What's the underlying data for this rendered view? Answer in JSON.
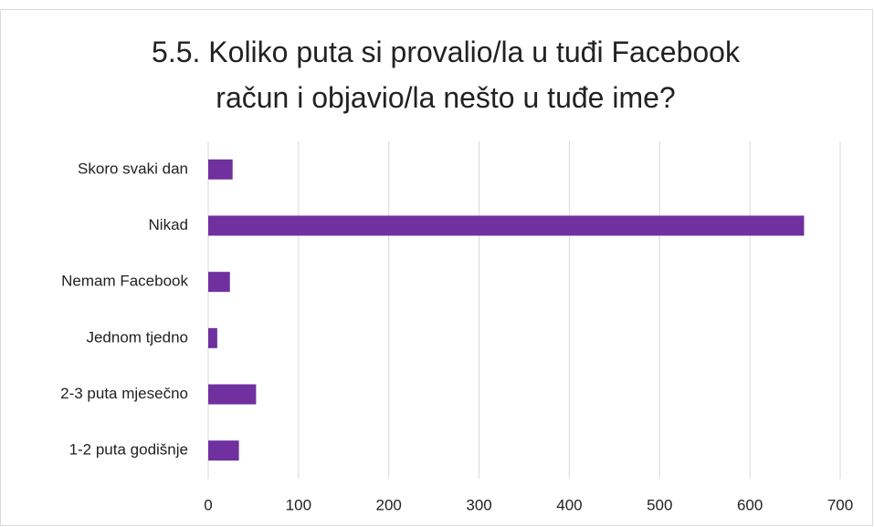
{
  "chart_data": {
    "type": "bar",
    "orientation": "horizontal",
    "title": "5.5. Koliko puta si provalio/la u tuđi Facebook račun i objavio/la nešto u tuđe ime?",
    "categories": [
      "Skoro svaki dan",
      "Nikad",
      "Nemam Facebook",
      "Jednom tjedno",
      "2-3 puta mjesečno",
      "1-2 puta godišnje"
    ],
    "values": [
      27,
      660,
      24,
      10,
      53,
      34
    ],
    "color": "#7030a0",
    "xlim": [
      0,
      700
    ],
    "xticks": [
      0,
      100,
      200,
      300,
      400,
      500,
      600,
      700
    ],
    "grid": true
  }
}
